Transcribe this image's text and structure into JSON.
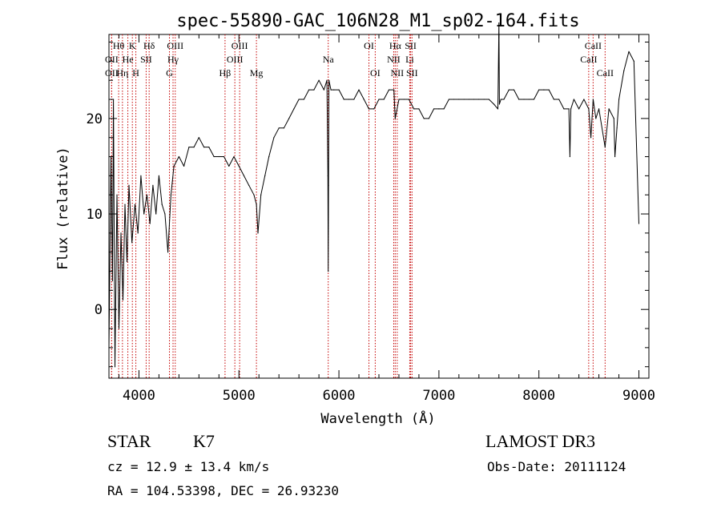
{
  "chart_data": {
    "type": "line",
    "title": "spec-55890-GAC_106N28_M1_sp02-164.fits",
    "xlabel": "Wavelength (Å)",
    "ylabel": "Flux (relative)",
    "xlim": [
      3700,
      9100
    ],
    "ylim": [
      -7.2,
      28.8
    ],
    "x_ticks": [
      4000,
      5000,
      6000,
      7000,
      8000,
      9000
    ],
    "x_tick_labels": [
      "4000",
      "5000",
      "6000",
      "7000",
      "8000",
      "9000"
    ],
    "y_ticks": [
      0,
      10,
      20
    ],
    "y_tick_labels": [
      "0",
      "10",
      "20"
    ],
    "series": [
      {
        "name": "flux",
        "x": [
          3700,
          3720,
          3735,
          3745,
          3760,
          3780,
          3800,
          3820,
          3840,
          3860,
          3880,
          3900,
          3930,
          3960,
          3990,
          4020,
          4050,
          4080,
          4110,
          4140,
          4170,
          4200,
          4230,
          4260,
          4290,
          4320,
          4350,
          4400,
          4450,
          4500,
          4550,
          4600,
          4650,
          4700,
          4750,
          4800,
          4850,
          4900,
          4950,
          5000,
          5050,
          5100,
          5150,
          5175,
          5190,
          5220,
          5260,
          5300,
          5350,
          5400,
          5450,
          5500,
          5550,
          5600,
          5650,
          5700,
          5750,
          5800,
          5850,
          5880,
          5890,
          5893,
          5896,
          5900,
          5920,
          5950,
          6000,
          6050,
          6100,
          6150,
          6200,
          6250,
          6300,
          6350,
          6400,
          6450,
          6500,
          6550,
          6563,
          6600,
          6650,
          6700,
          6750,
          6800,
          6850,
          6900,
          6950,
          7000,
          7050,
          7100,
          7150,
          7200,
          7250,
          7300,
          7350,
          7400,
          7450,
          7500,
          7550,
          7590,
          7600,
          7605,
          7620,
          7650,
          7700,
          7750,
          7800,
          7850,
          7900,
          7950,
          8000,
          8050,
          8100,
          8150,
          8200,
          8250,
          8300,
          8310,
          8320,
          8350,
          8400,
          8450,
          8498,
          8520,
          8542,
          8570,
          8600,
          8662,
          8700,
          8750,
          8760,
          8780,
          8800,
          8850,
          8900,
          8950,
          9000
        ],
        "y": [
          -4,
          16,
          3,
          22,
          -6,
          12,
          -2,
          8,
          1,
          11,
          5,
          13,
          7,
          11,
          8,
          14,
          10,
          12,
          9,
          13,
          10,
          14,
          11,
          10,
          6,
          12,
          15,
          16,
          15,
          17,
          17,
          18,
          17,
          17,
          16,
          16,
          16,
          15,
          16,
          15,
          14,
          13,
          12,
          11,
          8,
          12,
          14,
          16,
          18,
          19,
          19,
          20,
          21,
          22,
          22,
          23,
          23,
          24,
          23,
          24,
          14,
          4,
          13,
          24,
          23,
          23,
          23,
          22,
          22,
          22,
          23,
          22,
          21,
          21,
          22,
          22,
          23,
          23,
          20,
          22,
          22,
          22,
          21,
          21,
          20,
          20,
          21,
          21,
          21,
          22,
          22,
          22,
          22,
          22,
          22,
          22,
          22,
          22,
          21.5,
          21,
          30,
          21.5,
          22,
          22,
          23,
          23,
          22,
          22,
          22,
          22,
          23,
          23,
          23,
          22,
          22,
          21,
          21,
          16,
          21,
          22,
          21,
          22,
          21,
          18,
          22,
          20,
          21,
          17,
          21,
          20,
          16,
          19,
          22,
          25,
          27,
          26,
          9
        ]
      }
    ],
    "emission_lines": [
      {
        "name": "Hθ",
        "wl": 3797,
        "row": 1
      },
      {
        "name": "OII",
        "wl": 3727,
        "row": 2
      },
      {
        "name": "OII",
        "wl": 3727,
        "row": 3
      },
      {
        "name": "He",
        "wl": 3889,
        "row": 2
      },
      {
        "name": "Hη",
        "wl": 3835,
        "row": 3
      },
      {
        "name": "K",
        "wl": 3934,
        "row": 1
      },
      {
        "name": "H",
        "wl": 3969,
        "row": 3
      },
      {
        "name": "SII",
        "wl": 4072,
        "row": 2
      },
      {
        "name": "Hδ",
        "wl": 4102,
        "row": 1
      },
      {
        "name": "OIII",
        "wl": 4363,
        "row": 1
      },
      {
        "name": "Hγ",
        "wl": 4341,
        "row": 2
      },
      {
        "name": "G",
        "wl": 4305,
        "row": 3
      },
      {
        "name": "Hβ",
        "wl": 4861,
        "row": 3
      },
      {
        "name": "OIII",
        "wl": 5007,
        "row": 1
      },
      {
        "name": "OIII",
        "wl": 4959,
        "row": 2
      },
      {
        "name": "Mg",
        "wl": 5175,
        "row": 3
      },
      {
        "name": "Na",
        "wl": 5893,
        "row": 2
      },
      {
        "name": "OI",
        "wl": 6300,
        "row": 1
      },
      {
        "name": "OI",
        "wl": 6363,
        "row": 3
      },
      {
        "name": "Hα",
        "wl": 6563,
        "row": 1
      },
      {
        "name": "NII",
        "wl": 6548,
        "row": 2
      },
      {
        "name": "NII",
        "wl": 6583,
        "row": 3
      },
      {
        "name": "SII",
        "wl": 6717,
        "row": 1
      },
      {
        "name": "Li",
        "wl": 6708,
        "row": 2
      },
      {
        "name": "SII",
        "wl": 6731,
        "row": 3
      },
      {
        "name": "CaII",
        "wl": 8542,
        "row": 1
      },
      {
        "name": "CaII",
        "wl": 8498,
        "row": 2
      },
      {
        "name": "CaII",
        "wl": 8662,
        "row": 3
      }
    ],
    "line_color": "#000000",
    "marker_color": "#c40000"
  },
  "info": {
    "object_class": "STAR",
    "subclass": "K7",
    "survey": "LAMOST DR3",
    "redshift_line": "cz = 12.9 ± 13.4 km/s",
    "obs_date": "Obs-Date: 20111124",
    "coords": "RA = 104.53398, DEC =  26.93230"
  }
}
